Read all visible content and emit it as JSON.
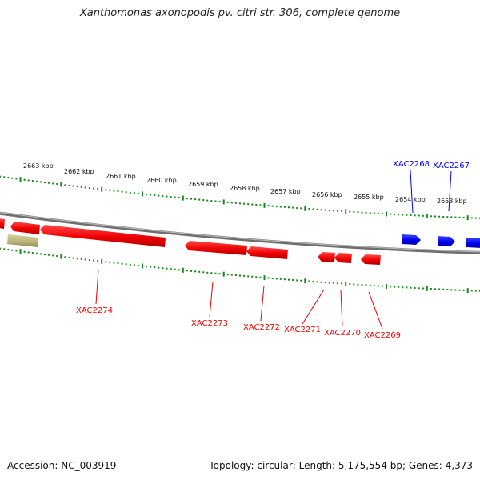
{
  "title": "Xanthomonas axonopodis pv. citri str. 306, complete genome",
  "footer": {
    "accession": "Accession: NC_003919",
    "topology": "Topology: circular; Length: 5,175,554 bp; Genes: 4,373"
  },
  "colors": {
    "reverse_strand": "#ee0000",
    "forward_strand": "#0000ee",
    "other_feature": "#b8b27a",
    "backbone": "#808080",
    "ticks": "#138a13"
  },
  "scale_labels": [
    "2663 kbp",
    "2662 kbp",
    "2661 kbp",
    "2660 kbp",
    "2659 kbp",
    "2658 kbp",
    "2657 kbp",
    "2656 kbp",
    "2655 kbp",
    "2654 kbp",
    "2653 kbp"
  ],
  "genes": [
    {
      "name": "XAC2274",
      "strand": "reverse"
    },
    {
      "name": "XAC2273",
      "strand": "reverse"
    },
    {
      "name": "XAC2272",
      "strand": "reverse"
    },
    {
      "name": "XAC2271",
      "strand": "reverse"
    },
    {
      "name": "XAC2270",
      "strand": "reverse"
    },
    {
      "name": "XAC2269",
      "strand": "reverse"
    },
    {
      "name": "XAC2268",
      "strand": "forward"
    },
    {
      "name": "XAC2267",
      "strand": "forward"
    }
  ]
}
